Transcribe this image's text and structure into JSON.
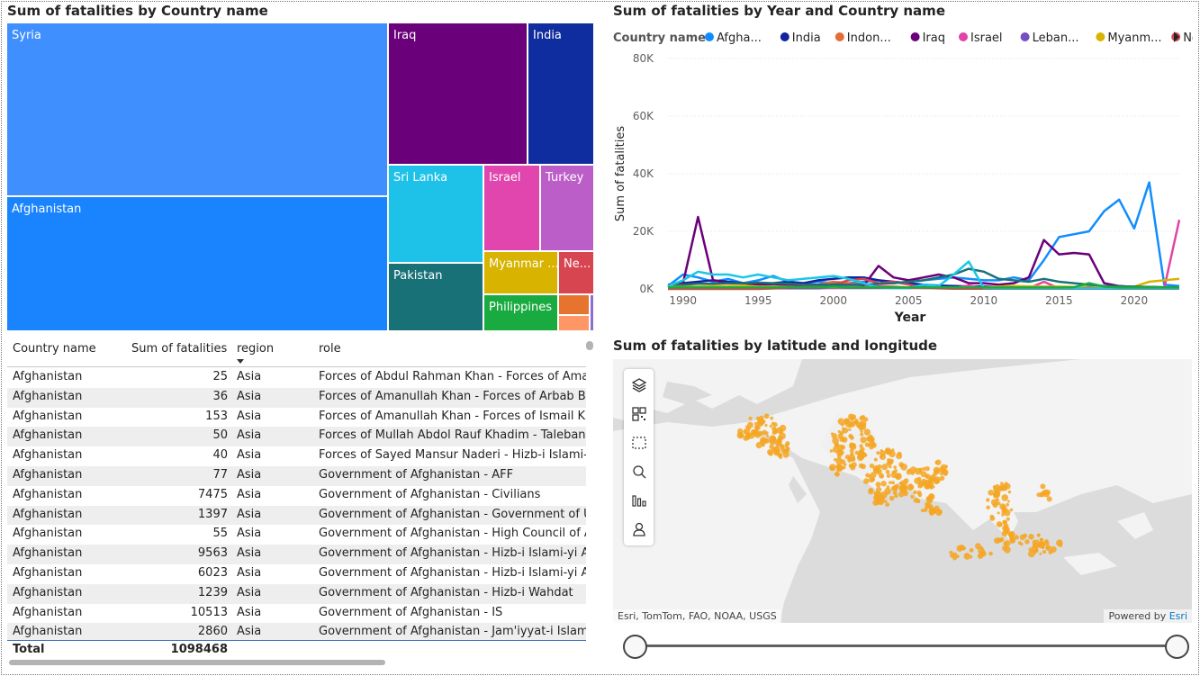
{
  "treemap": {
    "title": "Sum of fatalities by Country name",
    "tiles": [
      {
        "label": "Syria",
        "color": "#3f8ffe"
      },
      {
        "label": "Afghanistan",
        "color": "#1a84ff"
      },
      {
        "label": "Iraq",
        "color": "#6b007b"
      },
      {
        "label": "India",
        "color": "#0f2d9e"
      },
      {
        "label": "Sri Lanka",
        "color": "#1ec2e8"
      },
      {
        "label": "Israel",
        "color": "#e046ad"
      },
      {
        "label": "Turkey",
        "color": "#bc5ec7"
      },
      {
        "label": "Pakistan",
        "color": "#197178"
      },
      {
        "label": "Myanmar ...",
        "color": "#d8b300"
      },
      {
        "label": "Ne...",
        "color": "#d64550"
      },
      {
        "label": "Philippines",
        "color": "#1aab40"
      },
      {
        "label": "",
        "color": "#e6732e"
      },
      {
        "label": "",
        "color": "#fe9666"
      },
      {
        "label": "",
        "color": "#8d6fd1"
      }
    ]
  },
  "table": {
    "headers": {
      "country": "Country name",
      "fatalities": "Sum of fatalities",
      "region": "region",
      "role": "role"
    },
    "rows": [
      {
        "country": "Afghanistan",
        "fatalities": "25",
        "region": "Asia",
        "role": "Forces of Abdul Rahman Khan - Forces of Amanullah Khan"
      },
      {
        "country": "Afghanistan",
        "fatalities": "36",
        "region": "Asia",
        "role": "Forces of Amanullah Khan - Forces of Arbab Basir"
      },
      {
        "country": "Afghanistan",
        "fatalities": "153",
        "region": "Asia",
        "role": "Forces of Amanullah Khan - Forces of Ismail Khan"
      },
      {
        "country": "Afghanistan",
        "fatalities": "50",
        "region": "Asia",
        "role": "Forces of Mullah Abdol Rauf Khadim - Taleban"
      },
      {
        "country": "Afghanistan",
        "fatalities": "40",
        "region": "Asia",
        "role": "Forces of Sayed Mansur Naderi - Hizb-i Islami-yi Afghanistan"
      },
      {
        "country": "Afghanistan",
        "fatalities": "77",
        "region": "Asia",
        "role": "Government of Afghanistan - AFF"
      },
      {
        "country": "Afghanistan",
        "fatalities": "7475",
        "region": "Asia",
        "role": "Government of Afghanistan - Civilians"
      },
      {
        "country": "Afghanistan",
        "fatalities": "1397",
        "region": "Asia",
        "role": "Government of Afghanistan - Government of United Kingdom"
      },
      {
        "country": "Afghanistan",
        "fatalities": "55",
        "region": "Asia",
        "role": "Government of Afghanistan - High Council of Afghanistan"
      },
      {
        "country": "Afghanistan",
        "fatalities": "9563",
        "region": "Asia",
        "role": "Government of Afghanistan - Hizb-i Islami-yi Afghanistan"
      },
      {
        "country": "Afghanistan",
        "fatalities": "6023",
        "region": "Asia",
        "role": "Government of Afghanistan - Hizb-i Islami-yi Afghanistan"
      },
      {
        "country": "Afghanistan",
        "fatalities": "1239",
        "region": "Asia",
        "role": "Government of Afghanistan - Hizb-i Wahdat"
      },
      {
        "country": "Afghanistan",
        "fatalities": "10513",
        "region": "Asia",
        "role": "Government of Afghanistan - IS"
      },
      {
        "country": "Afghanistan",
        "fatalities": "2860",
        "region": "Asia",
        "role": "Government of Afghanistan - Jam'iyyat-i Islami-yi Afghanistan"
      }
    ],
    "total_label": "Total",
    "total_value": "1098468"
  },
  "line_chart": {
    "title": "Sum of fatalities by Year and Country name"
  },
  "chart_data": {
    "type": "line",
    "legend_title": "Country name",
    "legend_placement": "top",
    "xlabel": "Year",
    "ylabel": "Sum of fatalities",
    "xlim": [
      1989,
      2023
    ],
    "ylim": [
      0,
      80000
    ],
    "x_ticks": [
      "1990",
      "1995",
      "2000",
      "2005",
      "2010",
      "2015",
      "2020"
    ],
    "y_ticks": [
      "0K",
      "20K",
      "40K",
      "60K",
      "80K"
    ],
    "grid": true,
    "x": [
      1989,
      1990,
      1991,
      1992,
      1993,
      1994,
      1995,
      1996,
      1997,
      1998,
      1999,
      2000,
      2001,
      2002,
      2003,
      2004,
      2005,
      2006,
      2007,
      2008,
      2009,
      2010,
      2011,
      2012,
      2013,
      2014,
      2015,
      2016,
      2017,
      2018,
      2019,
      2020,
      2021,
      2022,
      2023
    ],
    "series": [
      {
        "name": "Afghanistan",
        "color": "#118dff",
        "values": [
          1000,
          5000,
          4000,
          2500,
          3500,
          2000,
          3000,
          4500,
          2500,
          2000,
          2500,
          2000,
          2000,
          2500,
          3000,
          2000,
          2500,
          3000,
          3500,
          4000,
          3500,
          3000,
          3000,
          4000,
          3000,
          10000,
          18000,
          19000,
          20000,
          27000,
          31000,
          21000,
          37000,
          1500,
          1000
        ]
      },
      {
        "name": "India",
        "color": "#12239e",
        "values": [
          1000,
          2000,
          2500,
          3000,
          2500,
          2000,
          1500,
          2000,
          2500,
          2000,
          3000,
          3500,
          4000,
          4000,
          3000,
          2500,
          2000,
          1500,
          1200,
          1000,
          900,
          800,
          700,
          600,
          500,
          500,
          400,
          400,
          400,
          400,
          300,
          300,
          300,
          300,
          300
        ]
      },
      {
        "name": "Indonesia",
        "color": "#e66c37",
        "values": [
          500,
          500,
          500,
          500,
          500,
          500,
          500,
          500,
          500,
          800,
          1500,
          2500,
          2000,
          1500,
          1000,
          800,
          500,
          300,
          300,
          300,
          300,
          300,
          300,
          300,
          300,
          300,
          300,
          300,
          300,
          300,
          300,
          300,
          300,
          300,
          300
        ]
      },
      {
        "name": "Iraq",
        "color": "#6b007b",
        "values": [
          500,
          2000,
          25000,
          3000,
          2000,
          2000,
          1500,
          1500,
          1200,
          1000,
          1000,
          1000,
          1000,
          1000,
          8000,
          4000,
          3000,
          4000,
          5000,
          4000,
          2000,
          2000,
          1500,
          2000,
          4000,
          17000,
          12000,
          12500,
          12000,
          2000,
          1000,
          700,
          700,
          500,
          500
        ]
      },
      {
        "name": "Israel",
        "color": "#e044a7",
        "values": [
          200,
          200,
          200,
          200,
          200,
          200,
          200,
          200,
          200,
          200,
          200,
          500,
          1000,
          1500,
          800,
          600,
          300,
          300,
          300,
          300,
          1200,
          200,
          200,
          300,
          200,
          2500,
          200,
          200,
          200,
          200,
          200,
          200,
          500,
          300,
          24000
        ]
      },
      {
        "name": "Lebanon",
        "color": "#744ec2",
        "values": [
          1500,
          1500,
          300,
          300,
          300,
          300,
          300,
          1000,
          300,
          300,
          300,
          300,
          300,
          300,
          300,
          300,
          300,
          1200,
          300,
          300,
          300,
          300,
          300,
          300,
          300,
          300,
          300,
          300,
          300,
          300,
          300,
          300,
          300,
          300,
          300
        ]
      },
      {
        "name": "Myanmar",
        "color": "#d9b300",
        "values": [
          800,
          800,
          800,
          1000,
          1000,
          1200,
          800,
          800,
          700,
          700,
          600,
          600,
          500,
          500,
          500,
          500,
          500,
          500,
          500,
          500,
          500,
          500,
          800,
          1000,
          900,
          800,
          800,
          700,
          1200,
          700,
          500,
          800,
          2500,
          3000,
          3500
        ]
      },
      {
        "name": "Nepal",
        "color": "#d64550",
        "values": [
          0,
          0,
          0,
          0,
          0,
          0,
          0,
          200,
          500,
          800,
          1200,
          1500,
          3000,
          3500,
          2000,
          2500,
          1500,
          500,
          200,
          100,
          100,
          100,
          100,
          100,
          100,
          100,
          100,
          100,
          100,
          100,
          100,
          100,
          100,
          100,
          100
        ]
      },
      {
        "name": "",
        "color": "#197278",
        "values": [
          1500,
          1500,
          1800,
          1800,
          2000,
          2000,
          2200,
          2000,
          1800,
          1500,
          1500,
          1500,
          1500,
          1500,
          1800,
          2000,
          2500,
          3000,
          4000,
          5000,
          7000,
          6000,
          3500,
          3000,
          2500,
          3500,
          2500,
          2000,
          1500,
          1000,
          900,
          800,
          700,
          600,
          500
        ]
      },
      {
        "name": "",
        "color": "#1ac7e5",
        "values": [
          1000,
          3000,
          6000,
          5000,
          5000,
          4000,
          5000,
          4000,
          3000,
          3500,
          4000,
          4500,
          3500,
          2000,
          500,
          300,
          300,
          1500,
          1000,
          5000,
          9500,
          300,
          200,
          200,
          200,
          200,
          200,
          200,
          200,
          200,
          200,
          200,
          200,
          200,
          200
        ]
      },
      {
        "name": "",
        "color": "#1aab40",
        "values": [
          500,
          500,
          500,
          500,
          500,
          500,
          500,
          500,
          500,
          500,
          500,
          800,
          500,
          500,
          500,
          500,
          500,
          500,
          500,
          500,
          500,
          500,
          500,
          500,
          500,
          500,
          500,
          600,
          2000,
          800,
          500,
          500,
          500,
          500,
          500
        ]
      }
    ]
  },
  "map": {
    "title": "Sum of fatalities by latitude and longitude",
    "attribution": "Esri, TomTom, FAO, NOAA, USGS",
    "powered_by": "Powered by",
    "powered_brand": "Esri",
    "point_color": "#f5a623",
    "tools": [
      "layers-icon",
      "qr-code-icon",
      "selection-rect-icon",
      "search-icon",
      "bar-chart-icon",
      "person-icon"
    ]
  }
}
